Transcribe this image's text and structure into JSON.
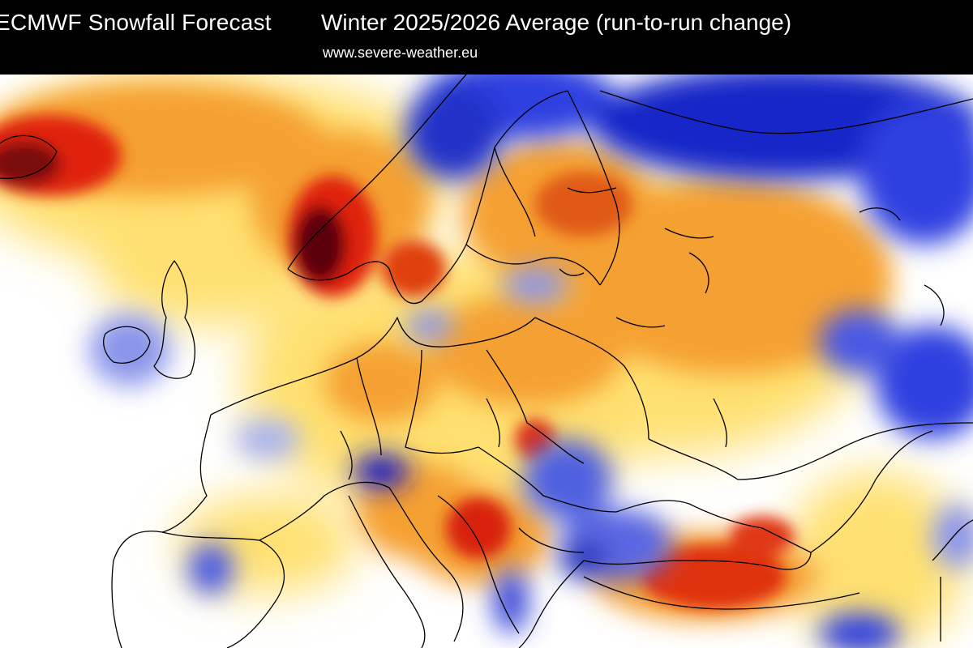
{
  "header": {
    "title": "ECMWF Snowfall Forecast",
    "subtitle": "Winter 2025/2026 Average (run-to-run change)",
    "source": "www.severe-weather.eu"
  },
  "map": {
    "region": "Europe",
    "variable": "snowfall run-to-run change",
    "colors": {
      "dark-red": "#5c0008",
      "red": "#e02010",
      "orange": "#f5a030",
      "yellow": "#ffe070",
      "white": "#ffffff",
      "light-blue": "#a8b2f0",
      "blue": "#2d3fe0",
      "dark-blue": "#0a0ab0",
      "border": "#000000"
    }
  }
}
